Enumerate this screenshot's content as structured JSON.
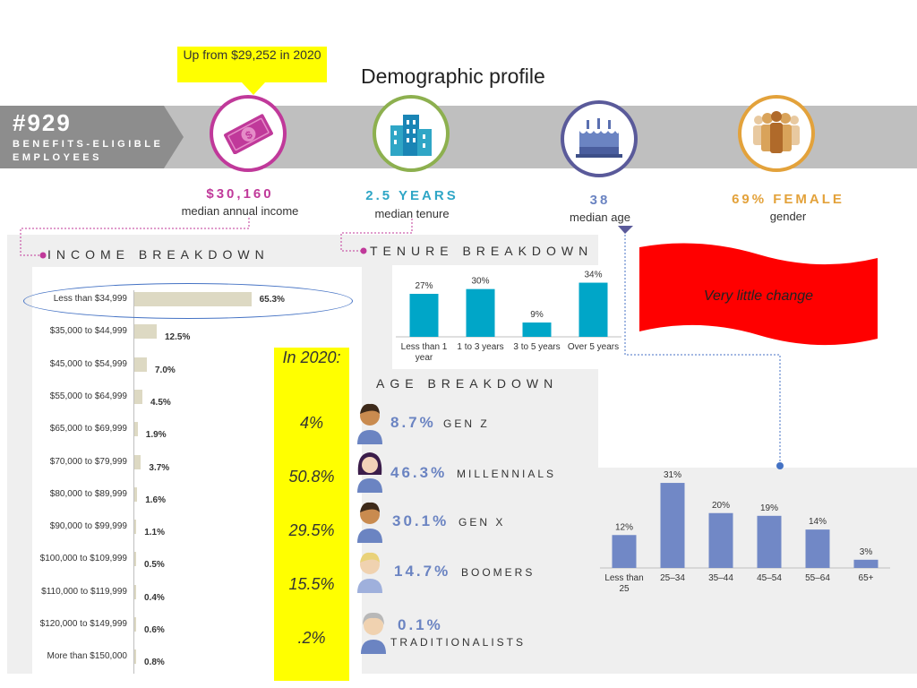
{
  "callout": "Up from $29,252 in 2020",
  "title": "Demographic profile",
  "employees": {
    "count": "#929",
    "label": "BENEFITS-ELIGIBLE EMPLOYEES"
  },
  "stats": {
    "income": {
      "value": "$30,160",
      "label": "median annual income",
      "icon": "money-icon"
    },
    "tenure": {
      "value": "2.5 YEARS",
      "label": "median tenure",
      "icon": "buildings-icon"
    },
    "age": {
      "value": "38",
      "label": "median age",
      "icon": "birthday-cake-icon"
    },
    "gender": {
      "value": "69% FEMALE",
      "label": "gender",
      "icon": "people-icon"
    }
  },
  "sections": {
    "income": "INCOME BREAKDOWN",
    "tenure": "TENURE BREAKDOWN",
    "age": "AGE BREAKDOWN"
  },
  "note": "Very little change",
  "in2020": {
    "heading": "In 2020:",
    "values": [
      "4%",
      "50.8%",
      "29.5%",
      "15.5%",
      ".2%"
    ]
  },
  "generations": [
    {
      "value": "8.7%",
      "name": "GEN Z"
    },
    {
      "value": "46.3%",
      "name": "MILLENNIALS"
    },
    {
      "value": "30.1%",
      "name": "GEN X"
    },
    {
      "value": "14.7%",
      "name": "BOOMERS"
    },
    {
      "value": "0.1%",
      "name": "TRADITIONALISTS"
    }
  ],
  "colors": {
    "income": "#c0399a",
    "tenure": "#2fa6c6",
    "age": "#6b84c2",
    "gender": "#e3a23b",
    "tenure_bar": "#00a6c8",
    "age_bar": "#7188c6",
    "income_bar": "#ddd9c3"
  },
  "chart_data": [
    {
      "type": "bar",
      "orientation": "horizontal",
      "categories": [
        "Less than $34,999",
        "$35,000 to $44,999",
        "$45,000 to $54,999",
        "$55,000 to $64,999",
        "$65,000 to $69,999",
        "$70,000 to $79,999",
        "$80,000 to $89,999",
        "$90,000 to $99,999",
        "$100,000 to $109,999",
        "$110,000 to $119,999",
        "$120,000 to $149,999",
        "More than $150,000"
      ],
      "values": [
        65.3,
        12.5,
        7.0,
        4.5,
        1.9,
        3.7,
        1.6,
        1.1,
        0.5,
        0.4,
        0.6,
        0.8
      ],
      "data_labels": [
        "65.3%",
        "12.5%",
        "7.0%",
        "4.5%",
        "1.9%",
        "3.7%",
        "1.6%",
        "1.1%",
        "0.5%",
        "0.4%",
        "0.6%",
        "0.8%"
      ],
      "xlim": [
        0,
        100
      ]
    },
    {
      "type": "bar",
      "categories": [
        "Less than 1 year",
        "1 to 3 years",
        "3 to 5 years",
        "Over 5 years"
      ],
      "values": [
        27,
        30,
        9,
        34
      ],
      "data_labels": [
        "27%",
        "30%",
        "9%",
        "34%"
      ],
      "ylim": [
        0,
        36
      ]
    },
    {
      "type": "bar",
      "categories": [
        "Less than 25",
        "25–34",
        "35–44",
        "45–54",
        "55–64",
        "65+"
      ],
      "values": [
        12,
        31,
        20,
        19,
        14,
        3
      ],
      "data_labels": [
        "12%",
        "31%",
        "20%",
        "19%",
        "14%",
        "3%"
      ],
      "ylim": [
        0,
        32
      ]
    }
  ]
}
